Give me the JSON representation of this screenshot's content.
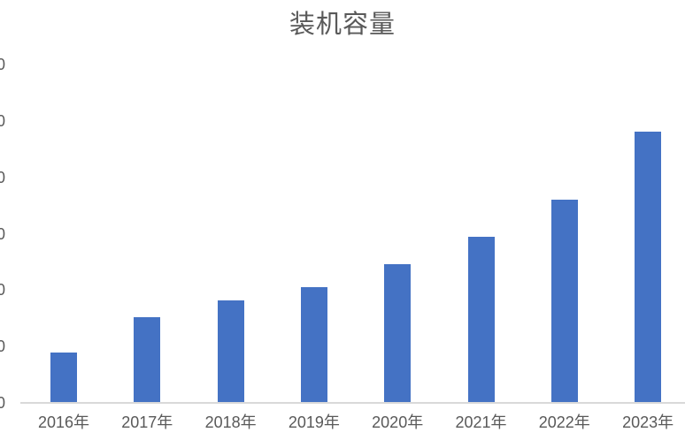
{
  "chart_data": {
    "type": "bar",
    "title": "装机容量",
    "categories": [
      "2016年",
      "2017年",
      "2018年",
      "2019年",
      "2020年",
      "2021年",
      "2022年",
      "2023年"
    ],
    "values": [
      89,
      152,
      182,
      205,
      246,
      295,
      361,
      481
    ],
    "xlabel": "",
    "ylabel": "",
    "ylim": [
      0,
      600
    ],
    "ytick_step": 100,
    "ytick_labels_visible": [
      "0",
      "0",
      "0",
      "0",
      "0",
      "0",
      "0"
    ],
    "ytick_note": "y-axis labels are cropped at the left image edge; only a trailing 0 digit is visible at each of the 7 ticks",
    "grid": "off",
    "legend": "none",
    "colors": {
      "bar": "#4472C4",
      "axis_line": "#D9D9D9",
      "text": "#595959",
      "background": "#FFFFFF"
    }
  }
}
